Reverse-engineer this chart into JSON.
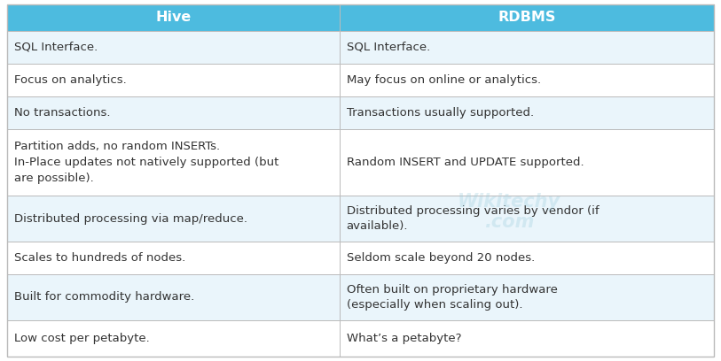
{
  "header": [
    "Hive",
    "RDBMS"
  ],
  "header_bg": "#4DBBDF",
  "header_text_color": "#FFFFFF",
  "header_font_size": 11.5,
  "rows": [
    [
      "SQL Interface.",
      "SQL Interface."
    ],
    [
      "Focus on analytics.",
      "May focus on online or analytics."
    ],
    [
      "No transactions.",
      "Transactions usually supported."
    ],
    [
      "Partition adds, no random INSERTs.\nIn-Place updates not natively supported (but\nare possible).",
      "Random INSERT and UPDATE supported."
    ],
    [
      "Distributed processing via map/reduce.",
      "Distributed processing varies by vendor (if\navailable)."
    ],
    [
      "Scales to hundreds of nodes.",
      "Seldom scale beyond 20 nodes."
    ],
    [
      "Built for commodity hardware.",
      "Often built on proprietary hardware\n(especially when scaling out)."
    ],
    [
      "Low cost per petabyte.",
      "What’s a petabyte?"
    ]
  ],
  "row_bg_odd": "#EAF5FB",
  "row_bg_even": "#FFFFFF",
  "cell_text_color": "#333333",
  "cell_font_size": 9.5,
  "border_color": "#BBBBBB",
  "fig_bg": "#FFFFFF",
  "col_split": 0.47,
  "watermark_text": "Wikitechy\n.com",
  "watermark_color": "#99CCDD",
  "watermark_alpha": 0.3
}
